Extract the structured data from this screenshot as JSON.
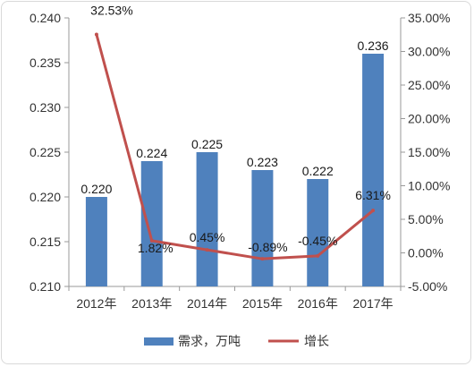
{
  "chart_data": {
    "type": "bar+line",
    "categories": [
      "2012年",
      "2013年",
      "2014年",
      "2015年",
      "2016年",
      "2017年"
    ],
    "series": [
      {
        "name": "需求，万吨",
        "type": "bar",
        "axis": "left",
        "color": "#4f81bd",
        "values": [
          0.22,
          0.224,
          0.225,
          0.223,
          0.222,
          0.236
        ],
        "labels": [
          "0.220",
          "0.224",
          "0.225",
          "0.223",
          "0.222",
          "0.236"
        ]
      },
      {
        "name": "增长",
        "type": "line",
        "axis": "right",
        "color": "#c0504d",
        "values": [
          32.53,
          1.82,
          0.45,
          -0.89,
          -0.45,
          6.31
        ],
        "labels": [
          "32.53%",
          "1.82%",
          "0.45%",
          "-0.89%",
          "-0.45%",
          "6.31%"
        ]
      }
    ],
    "y_left": {
      "min": 0.21,
      "max": 0.24,
      "ticks": [
        "0.210",
        "0.215",
        "0.220",
        "0.225",
        "0.230",
        "0.235",
        "0.240"
      ]
    },
    "y_right": {
      "min": -5,
      "max": 35,
      "ticks": [
        "-5.00%",
        "0.00%",
        "5.00%",
        "10.00%",
        "15.00%",
        "20.00%",
        "25.00%",
        "30.00%",
        "35.00%"
      ]
    },
    "legend_position": "bottom",
    "grid": false
  }
}
